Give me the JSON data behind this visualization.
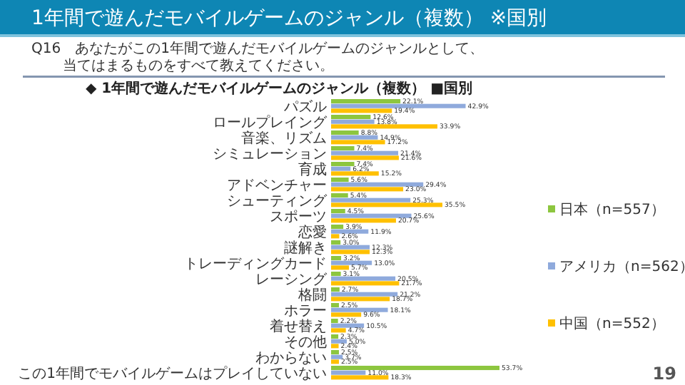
{
  "chart_data": {
    "type": "bar",
    "orientation": "horizontal",
    "title": "1年間で遊んだモバイルゲームのジャンル（複数） ※国別",
    "subtitle": "Q16　あなたがこの1年間で遊んだモバイルゲームのジャンルとして、当てはまるものをすべて教えてください。",
    "annotations": [
      "◆ 1年間で遊んだモバイルゲームのジャンル（複数） ■国別",
      "19"
    ],
    "categories": [
      "パズル",
      "ロールプレイング",
      "音楽、リズム",
      "シミュレーション",
      "育成",
      "アドベンチャー",
      "シューティング",
      "スポーツ",
      "恋愛",
      "謎解き",
      "トレーディングカード",
      "レーシング",
      "格闘",
      "ホラー",
      "着せ替え",
      "その他",
      "わからない",
      "この1年間でモバイルゲームはプレイしていない"
    ],
    "series": [
      {
        "name": "日本（n=557）",
        "color": "#8dc63f",
        "values": [
          22.1,
          12.6,
          8.8,
          7.4,
          7.4,
          5.6,
          5.4,
          4.5,
          3.9,
          3.0,
          3.2,
          3.1,
          2.7,
          2.5,
          2.2,
          2.3,
          2.5,
          53.7
        ],
        "value_labels": [
          "22.1%",
          "12.6%",
          "8.8%",
          "7.4%",
          "7.4%",
          "5.6%",
          "5.4%",
          "4.5%",
          "3.9%",
          "3.0%",
          "3.2%",
          "3.1%",
          "2.7%",
          "2.5%",
          "2.2%",
          "2.3%",
          "2.5%",
          "53.7%"
        ]
      },
      {
        "name": "アメリカ（n=562）",
        "color": "#8faadc",
        "values": [
          42.9,
          13.8,
          14.9,
          21.4,
          6.2,
          29.4,
          25.3,
          25.6,
          11.9,
          12.3,
          13.0,
          20.5,
          21.2,
          18.1,
          10.5,
          5.0,
          3.7,
          11.0
        ],
        "value_labels": [
          "42.9%",
          "13.8%",
          "14.9%",
          "21.4%",
          "6.2%",
          "29.4%",
          "25.3%",
          "25.6%",
          "11.9%",
          "12.3%",
          "13.0%",
          "20.5%",
          "21.2%",
          "18.1%",
          "10.5%",
          "5.0%",
          "3.7%",
          "11.0%"
        ]
      },
      {
        "name": "中国（n=552）",
        "color": "#ffc000",
        "values": [
          19.4,
          33.9,
          17.2,
          21.6,
          15.2,
          23.0,
          35.5,
          20.7,
          2.6,
          12.3,
          5.7,
          21.7,
          18.7,
          9.6,
          4.7,
          2.4,
          2.5,
          18.3
        ],
        "value_labels": [
          "19.4%",
          "33.9%",
          "17.2%",
          "21.6%",
          "15.2%",
          "23.0%",
          "35.5%",
          "20.7%",
          "2.6%",
          "12.3%",
          "5.7%",
          "21.7%",
          "18.7%",
          "9.6%",
          "4.7%",
          "2.4%",
          "2.5%",
          "18.3%"
        ]
      }
    ],
    "legend": "right"
  }
}
